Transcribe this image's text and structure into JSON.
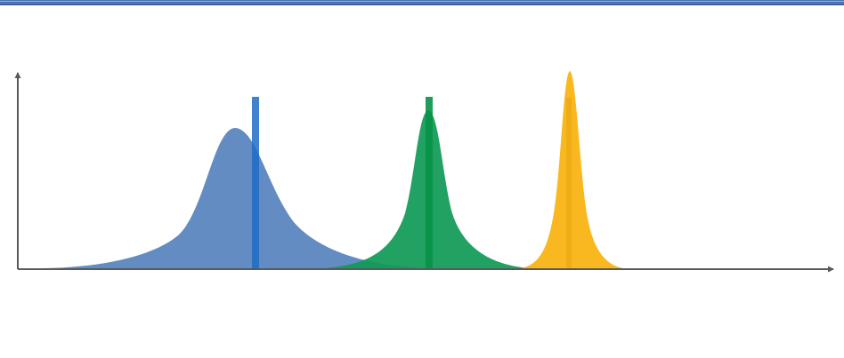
{
  "colors": {
    "header_bar": "#4a74b4",
    "axis": "#595959",
    "curve_blue": "#5a86bf",
    "marker_blue": "#1f6cc4",
    "curve_green": "#0f9a55",
    "marker_green": "#079447",
    "curve_yellow": "#f9b413",
    "marker_yellow": "#e8a412"
  },
  "curves": [
    {
      "name": "wide-distribution",
      "color_key": "curve_blue",
      "marker_key": "marker_blue",
      "relative_height": 0.72,
      "spread": "wide"
    },
    {
      "name": "medium-distribution",
      "color_key": "curve_green",
      "marker_key": "marker_green",
      "relative_height": 0.81,
      "spread": "medium"
    },
    {
      "name": "narrow-distribution",
      "color_key": "curve_yellow",
      "marker_key": "marker_yellow",
      "relative_height": 1.0,
      "spread": "narrow"
    }
  ]
}
